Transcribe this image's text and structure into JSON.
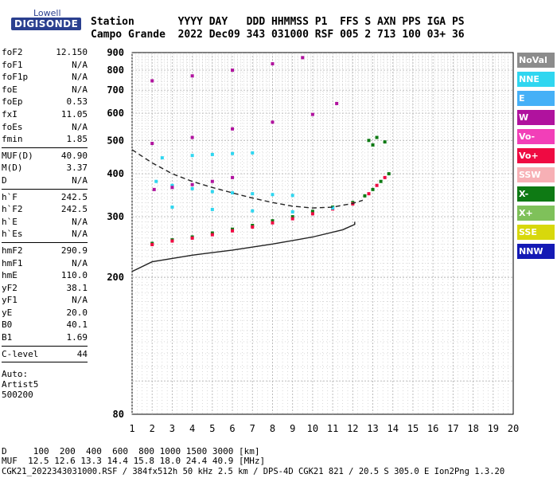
{
  "logo": {
    "line1": "Lowell",
    "line2": "DIGISONDE"
  },
  "header": {
    "row1": "Station       YYYY DAY   DDD HHMMSS P1  FFS S AXN PPS IGA PS",
    "row2": "Campo Grande  2022 Dec09 343 031000 RSF 005 2 713 100 03+ 36"
  },
  "params": {
    "group1": [
      {
        "name": "foF2",
        "value": "12.150"
      },
      {
        "name": "foF1",
        "value": "N/A"
      },
      {
        "name": "foF1p",
        "value": "N/A"
      },
      {
        "name": "foE",
        "value": "N/A"
      },
      {
        "name": "foEp",
        "value": "0.53"
      },
      {
        "name": "fxI",
        "value": "11.05"
      },
      {
        "name": "foEs",
        "value": "N/A"
      },
      {
        "name": "fmin",
        "value": "1.85"
      }
    ],
    "group2": [
      {
        "name": "MUF(D)",
        "value": "40.90"
      },
      {
        "name": "M(D)",
        "value": "3.37"
      },
      {
        "name": "D",
        "value": "N/A"
      }
    ],
    "group3": [
      {
        "name": "h`F",
        "value": "242.5"
      },
      {
        "name": "h`F2",
        "value": "242.5"
      },
      {
        "name": "h`E",
        "value": "N/A"
      },
      {
        "name": "h`Es",
        "value": "N/A"
      }
    ],
    "group4": [
      {
        "name": "hmF2",
        "value": "290.9"
      },
      {
        "name": "hmF1",
        "value": "N/A"
      },
      {
        "name": "hmE",
        "value": "110.0"
      },
      {
        "name": "yF2",
        "value": "38.1"
      },
      {
        "name": "yF1",
        "value": "N/A"
      },
      {
        "name": "yE",
        "value": "20.0"
      },
      {
        "name": "B0",
        "value": "40.1"
      },
      {
        "name": "B1",
        "value": "1.69"
      }
    ],
    "group5": [
      {
        "name": "C-level",
        "value": "44"
      }
    ],
    "auto": [
      "Auto:",
      "Artist5",
      "500200"
    ]
  },
  "legend": [
    {
      "label": "NoVal",
      "color": "#8c8c8c"
    },
    {
      "label": "NNE",
      "color": "#2fd6f0"
    },
    {
      "label": "E",
      "color": "#45b0f7"
    },
    {
      "label": "W",
      "color": "#b0129e"
    },
    {
      "label": "Vo-",
      "color": "#f23fb8"
    },
    {
      "label": "Vo+",
      "color": "#ef0a42"
    },
    {
      "label": "SSW",
      "color": "#f7b0b5"
    },
    {
      "label": "X-",
      "color": "#0e7a14"
    },
    {
      "label": "X+",
      "color": "#7fc15a"
    },
    {
      "label": "SSE",
      "color": "#d8d80c"
    },
    {
      "label": "NNW",
      "color": "#141ab5"
    }
  ],
  "footer": {
    "d_line": "D     100  200  400  600  800 1000 1500 3000 [km]",
    "muf_line": "MUF  12.5 12.6 13.3 14.4 15.8 18.0 24.4 40.9 [MHz]",
    "file_line": "CGK21_2022343031000.RSF / 384fx512h 50 kHz 2.5 km / DPS-4D CGK21 821 / 20.5 S 305.0 E Ion2Png 1.3.20"
  },
  "chart_data": {
    "type": "scatter",
    "title": "",
    "xlabel": "",
    "ylabel": "",
    "xlim": [
      1,
      20
    ],
    "ylim": [
      80,
      900
    ],
    "y_scale": "log",
    "x_ticks": [
      1,
      2,
      3,
      4,
      5,
      6,
      7,
      8,
      9,
      10,
      11,
      12,
      13,
      14,
      15,
      16,
      17,
      18,
      19,
      20
    ],
    "y_ticks": [
      80,
      200,
      300,
      400,
      500,
      600,
      700,
      800,
      900
    ],
    "grid": true,
    "series": [
      {
        "name": "X-",
        "points": [
          [
            2.0,
            251
          ],
          [
            3,
            257
          ],
          [
            4,
            262
          ],
          [
            5,
            269
          ],
          [
            6,
            276
          ],
          [
            7,
            283
          ],
          [
            8,
            292
          ],
          [
            9,
            300
          ],
          [
            10,
            311
          ],
          [
            11,
            320
          ],
          [
            12,
            330
          ],
          [
            12.6,
            345
          ],
          [
            13.0,
            360
          ],
          [
            13.4,
            380
          ],
          [
            13.8,
            400
          ]
        ]
      },
      {
        "name": "Vo+",
        "points": [
          [
            2.0,
            249
          ],
          [
            3,
            255
          ],
          [
            4,
            260
          ],
          [
            5,
            266
          ],
          [
            6,
            273
          ],
          [
            7,
            280
          ],
          [
            8,
            288
          ],
          [
            9,
            296
          ],
          [
            10,
            306
          ],
          [
            11,
            316
          ],
          [
            12,
            327
          ],
          [
            12.8,
            350
          ],
          [
            13.2,
            370
          ],
          [
            13.6,
            390
          ]
        ]
      },
      {
        "name": "NNE",
        "points": [
          [
            2.2,
            380
          ],
          [
            3,
            370
          ],
          [
            4,
            362
          ],
          [
            5,
            355
          ],
          [
            6,
            352
          ],
          [
            7,
            350
          ],
          [
            8,
            348
          ],
          [
            9,
            346
          ],
          [
            2.5,
            445
          ],
          [
            4,
            452
          ],
          [
            5,
            455
          ],
          [
            6,
            458
          ],
          [
            7,
            460
          ],
          [
            3,
            320
          ],
          [
            5,
            315
          ],
          [
            7,
            312
          ],
          [
            9,
            310
          ],
          [
            11,
            318
          ]
        ]
      },
      {
        "name": "W",
        "points": [
          [
            2.1,
            360
          ],
          [
            3,
            365
          ],
          [
            4,
            372
          ],
          [
            5,
            380
          ],
          [
            6,
            390
          ],
          [
            2,
            490
          ],
          [
            4,
            510
          ],
          [
            6,
            540
          ],
          [
            8,
            565
          ],
          [
            10,
            595
          ],
          [
            11.2,
            640
          ],
          [
            2,
            745
          ],
          [
            4,
            770
          ],
          [
            6,
            800
          ],
          [
            8,
            835
          ],
          [
            9.5,
            870
          ]
        ]
      },
      {
        "name": "X-",
        "points": [
          [
            12.8,
            500
          ],
          [
            13.2,
            510
          ],
          [
            13.6,
            495
          ],
          [
            13.0,
            485
          ]
        ]
      }
    ],
    "curves": [
      {
        "name": "profile",
        "points": [
          [
            1,
            208
          ],
          [
            2,
            222
          ],
          [
            4,
            232
          ],
          [
            6,
            240
          ],
          [
            8,
            250
          ],
          [
            10,
            262
          ],
          [
            11.5,
            275
          ],
          [
            12.1,
            285
          ],
          [
            12.1,
            290
          ]
        ]
      },
      {
        "name": "profile-dashed",
        "points": [
          [
            1,
            470
          ],
          [
            2,
            430
          ],
          [
            3,
            400
          ],
          [
            4,
            380
          ],
          [
            5,
            365
          ],
          [
            6,
            352
          ],
          [
            7,
            340
          ],
          [
            8,
            330
          ],
          [
            9,
            322
          ],
          [
            10,
            318
          ],
          [
            11,
            320
          ],
          [
            12,
            328
          ],
          [
            12.5,
            335
          ]
        ]
      }
    ]
  }
}
